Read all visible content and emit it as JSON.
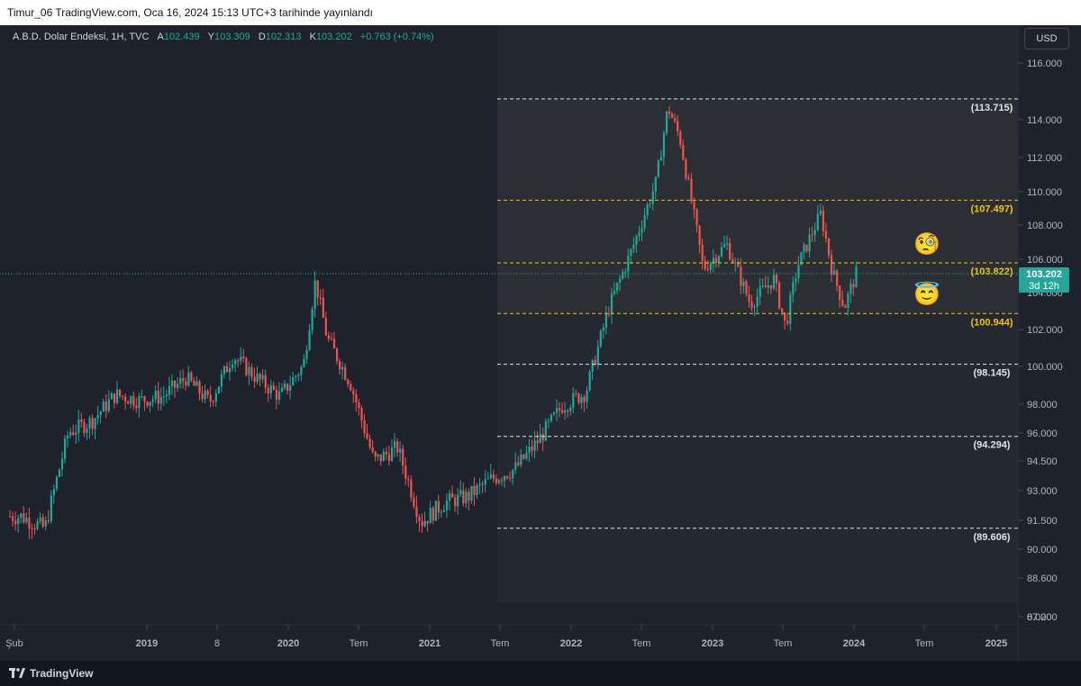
{
  "header": {
    "publish_line": "Timur_06 TradingView.com, Oca 16, 2024 15:13 UTC+3 tarihinde yayınlandı"
  },
  "legend": {
    "symbol": "A.B.D. Dolar Endeksi, 1H, TVC",
    "open_label": "A",
    "open": "102.439",
    "high_label": "Y",
    "high": "103.309",
    "low_label": "D",
    "low": "102.313",
    "close_label": "K",
    "close": "103.202",
    "change": "+0.763 (+0.74%)"
  },
  "currency_button": "USD",
  "footer": {
    "brand": "TradingView"
  },
  "colors": {
    "up": "#26a69a",
    "down": "#ef5350",
    "yellow_level": "#f0c419",
    "white_level": "#e0e3eb",
    "background": "#1e222d"
  },
  "chart_data": {
    "type": "candlestick",
    "title": "A.B.D. Dolar Endeksi, 1H, TVC",
    "x_axis_labels": [
      "Şub",
      "2019",
      "8",
      "2020",
      "Tem",
      "2021",
      "Tem",
      "2022",
      "Tem",
      "2023",
      "Tem",
      "2024",
      "Tem",
      "2025"
    ],
    "y_axis_labels": [
      "116.000",
      "114.000",
      "112.000",
      "110.000",
      "108.000",
      "106.000",
      "104.000",
      "102.000",
      "100.000",
      "98.000",
      "96.000",
      "94.500",
      "93.000",
      "91.500",
      "90.000",
      "88.600",
      "87.200",
      "0.000"
    ],
    "y_scale": "log",
    "price_line": {
      "value": 103.202,
      "label": "103.202",
      "countdown": "3d 12h"
    },
    "levels": [
      {
        "value": 113.715,
        "label": "(113.715)",
        "color": "white"
      },
      {
        "value": 107.497,
        "label": "(107.497)",
        "color": "yellow"
      },
      {
        "value": 103.822,
        "label": "(103.822)",
        "color": "yellow"
      },
      {
        "value": 100.944,
        "label": "(100.944)",
        "color": "yellow"
      },
      {
        "value": 98.145,
        "label": "(98.145)",
        "color": "white"
      },
      {
        "value": 94.294,
        "label": "(94.294)",
        "color": "white"
      },
      {
        "value": 89.606,
        "label": "(89.606)",
        "color": "white"
      }
    ],
    "series": [
      {
        "values": [
          [
            "2018-02",
            90.2
          ],
          [
            "2018-04",
            89.6
          ],
          [
            "2018-06",
            94.5
          ],
          [
            "2018-08",
            95.1
          ],
          [
            "2018-10",
            96.5
          ],
          [
            "2018-12",
            96.2
          ],
          [
            "2019-02",
            96.4
          ],
          [
            "2019-04",
            97.4
          ],
          [
            "2019-06",
            96.1
          ],
          [
            "2019-08",
            98.6
          ],
          [
            "2019-10",
            97.4
          ],
          [
            "2019-12",
            96.4
          ],
          [
            "2020-02",
            98.1
          ],
          [
            "2020-03",
            102.8
          ],
          [
            "2020-04",
            99.6
          ],
          [
            "2020-06",
            97.1
          ],
          [
            "2020-08",
            93.0
          ],
          [
            "2020-10",
            93.7
          ],
          [
            "2020-12",
            89.9
          ],
          [
            "2021-02",
            90.9
          ],
          [
            "2021-04",
            91.2
          ],
          [
            "2021-06",
            92.1
          ],
          [
            "2021-08",
            92.6
          ],
          [
            "2021-10",
            94.1
          ],
          [
            "2021-12",
            95.9
          ],
          [
            "2022-02",
            96.6
          ],
          [
            "2022-04",
            101.3
          ],
          [
            "2022-06",
            104.7
          ],
          [
            "2022-08",
            108.6
          ],
          [
            "2022-09",
            113.2
          ],
          [
            "2022-10",
            111.3
          ],
          [
            "2022-12",
            103.5
          ],
          [
            "2023-02",
            104.9
          ],
          [
            "2023-04",
            101.5
          ],
          [
            "2023-06",
            102.9
          ],
          [
            "2023-07",
            100.2
          ],
          [
            "2023-08",
            103.6
          ],
          [
            "2023-10",
            106.7
          ],
          [
            "2023-11",
            103.3
          ],
          [
            "2023-12",
            101.3
          ],
          [
            "2024-01",
            103.2
          ]
        ]
      }
    ],
    "annotations": [
      "🧐",
      "😇"
    ]
  }
}
